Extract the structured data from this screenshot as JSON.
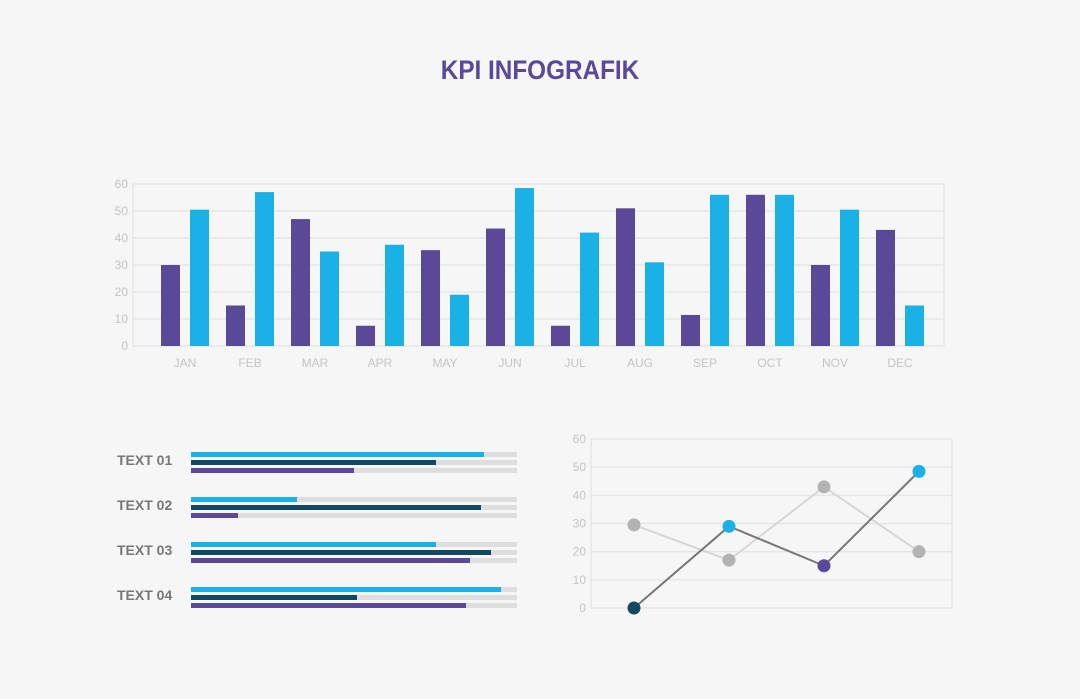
{
  "title": "KPI INFOGRAFIK",
  "colors": {
    "purple": "#5a4898",
    "cyan": "#1ab2e6",
    "navy": "#114862",
    "gray": "#b3b3b3",
    "dark_line": "#777777",
    "light_line": "#d6d6d6",
    "track": "#dedede"
  },
  "chart_data": [
    {
      "type": "bar",
      "categories": [
        "JAN",
        "FEB",
        "MAR",
        "APR",
        "MAY",
        "JUN",
        "JUL",
        "AUG",
        "SEP",
        "OCT",
        "NOV",
        "DEC"
      ],
      "series": [
        {
          "values": [
            30,
            15,
            47,
            7.5,
            35.5,
            43.5,
            7.5,
            51,
            11.5,
            56,
            30,
            43
          ]
        },
        {
          "values": [
            50.5,
            57,
            35,
            37.5,
            19,
            58.5,
            42,
            31,
            56,
            56,
            50.5,
            15
          ]
        }
      ],
      "ylim": [
        0,
        60
      ],
      "yticks": [
        "0",
        "10",
        "20",
        "30",
        "40",
        "50",
        "60"
      ],
      "grid": true
    },
    {
      "type": "bar",
      "orientation": "horizontal",
      "categories": [
        "TEXT 01",
        "TEXT 02",
        "TEXT 03",
        "TEXT 04"
      ],
      "series": [
        {
          "color": "#1ab2e6",
          "values": [
            0.9,
            0.325,
            0.75,
            0.95
          ]
        },
        {
          "color": "#114862",
          "values": [
            0.75,
            0.89,
            0.92,
            0.51
          ]
        },
        {
          "color": "#5a4898",
          "values": [
            0.5,
            0.145,
            0.855,
            0.845
          ]
        }
      ],
      "xlim": [
        0,
        1
      ]
    },
    {
      "type": "line",
      "x": [
        1,
        2,
        3,
        4
      ],
      "series": [
        {
          "values": [
            29.5,
            17,
            43,
            20
          ],
          "point_colors": [
            "#b3b3b3",
            "#b3b3b3",
            "#b3b3b3",
            "#b3b3b3"
          ]
        },
        {
          "values": [
            0,
            29,
            15,
            48.5
          ],
          "point_colors": [
            "#114862",
            "#1ab2e6",
            "#5a4898",
            "#1ab2e6"
          ]
        }
      ],
      "ylim": [
        0,
        60
      ],
      "yticks": [
        "0",
        "10",
        "20",
        "30",
        "40",
        "50",
        "60"
      ],
      "grid": true
    }
  ]
}
